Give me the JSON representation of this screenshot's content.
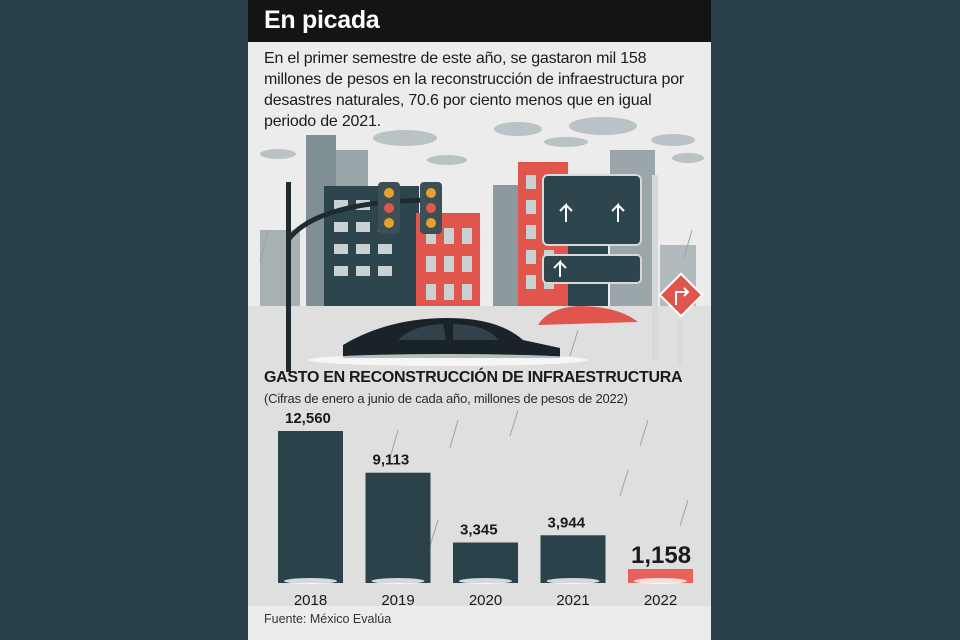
{
  "headline": "En picada",
  "lead": "En el primer semestre de este año, se gastaron mil 158 millones de pesos en la reconstrucción de infraestructura por desastres naturales, 70.6 por ciento menos que en igual periodo de 2021.",
  "source": "Fuente: México Evalúa",
  "illustration": {
    "description_icons": [
      "traffic-light-icon",
      "road-sign-icon",
      "turn-right-sign-icon",
      "car-icon"
    ]
  },
  "colors": {
    "page_background": "#284049",
    "card_background": "#ececec",
    "title_bar": "#141414",
    "bar": "#2a4249",
    "highlight_bar": "#e8615a",
    "building_red": "#e0564d",
    "building_gray": "#8f9ca0"
  },
  "chart_data": {
    "type": "bar",
    "title": "GASTO EN RECONSTRUCCIÓN DE INFRAESTRUCTURA",
    "subtitle": "(Cifras de enero a junio de cada año, millones de pesos de 2022)",
    "categories": [
      "2018",
      "2019",
      "2020",
      "2021",
      "2022"
    ],
    "values": [
      12560,
      9113,
      3345,
      3944,
      1158
    ],
    "value_labels": [
      "12,560",
      "9,113",
      "3,345",
      "3,944",
      "1,158"
    ],
    "highlight_index": 4,
    "ylim": [
      0,
      12560
    ],
    "grid": false,
    "legend": "none"
  }
}
